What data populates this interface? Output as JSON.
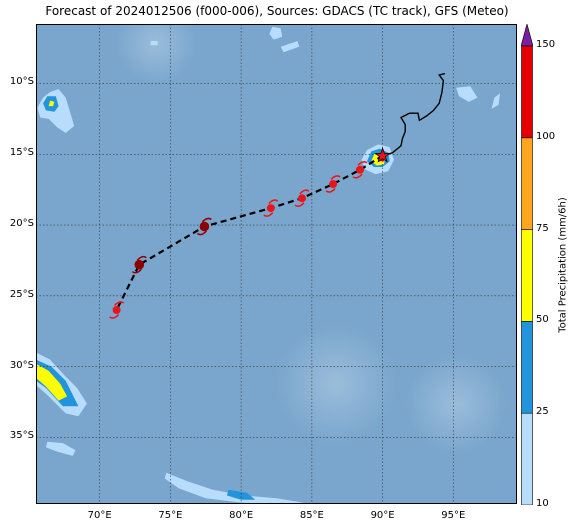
{
  "title": "Forecast of 2024012506 (f000-006), Sources: GDACS (TC track), GFS (Meteo)",
  "map": {
    "lon_range": [
      65.5,
      99.5
    ],
    "lat_range": [
      -39.7,
      -5.8
    ],
    "ocean_color": "#7aa6cd",
    "grid_lats": [
      -10,
      -15,
      -20,
      -25,
      -30,
      -35
    ],
    "grid_lons": [
      70,
      75,
      80,
      85,
      90,
      95
    ],
    "lat_labels": [
      "10°S",
      "15°S",
      "20°S",
      "25°S",
      "30°S",
      "35°S"
    ],
    "lon_labels": [
      "70°E",
      "75°E",
      "80°E",
      "85°E",
      "90°E",
      "95°E"
    ]
  },
  "colorbar": {
    "label": "Total Precipitation (mm/6h)",
    "ticks": [
      "10",
      "25",
      "50",
      "75",
      "100",
      "150"
    ],
    "bands": [
      {
        "color": "#b8dcfb"
      },
      {
        "color": "#2194db"
      },
      {
        "color": "#ffff00"
      },
      {
        "color": "#ffa51f"
      },
      {
        "color": "#e40000"
      }
    ],
    "extend_color": "#7b1fa2"
  },
  "track": {
    "current": {
      "lon": 90.0,
      "lat": -15.1
    },
    "history": [
      [
        90.0,
        -15.1
      ],
      [
        90.7,
        -14.9
      ],
      [
        91.3,
        -14.4
      ],
      [
        91.4,
        -13.9
      ],
      [
        91.6,
        -13.4
      ],
      [
        91.6,
        -12.9
      ],
      [
        91.3,
        -12.4
      ],
      [
        91.9,
        -12.1
      ],
      [
        92.5,
        -12.1
      ],
      [
        92.6,
        -12.6
      ],
      [
        93.1,
        -12.3
      ],
      [
        93.6,
        -11.9
      ],
      [
        94.0,
        -11.4
      ],
      [
        94.2,
        -10.6
      ],
      [
        94.3,
        -9.8
      ],
      [
        94.0,
        -9.4
      ],
      [
        94.4,
        -9.3
      ]
    ],
    "forecast": [
      {
        "lon": 90.0,
        "lat": -15.1,
        "strength": "storm"
      },
      {
        "lon": 88.4,
        "lat": -16.1,
        "strength": "storm"
      },
      {
        "lon": 86.5,
        "lat": -17.1,
        "strength": "storm"
      },
      {
        "lon": 84.3,
        "lat": -18.1,
        "strength": "storm"
      },
      {
        "lon": 82.1,
        "lat": -18.8,
        "strength": "storm"
      },
      {
        "lon": 77.4,
        "lat": -20.1,
        "strength": "cyclone"
      },
      {
        "lon": 72.8,
        "lat": -22.8,
        "strength": "cyclone"
      },
      {
        "lon": 71.2,
        "lat": -26.0,
        "strength": "storm"
      }
    ],
    "colors": {
      "storm": "#e8161b",
      "cyclone": "#8b0000",
      "star": "#e8161b"
    }
  },
  "precip": [
    {
      "band": 0,
      "pts": [
        [
          66.5,
          -10.6
        ],
        [
          67.1,
          -10.4
        ],
        [
          67.6,
          -11.0
        ],
        [
          67.9,
          -12.0
        ],
        [
          68.2,
          -13.0
        ],
        [
          67.6,
          -13.5
        ],
        [
          67.0,
          -13.1
        ],
        [
          66.4,
          -12.5
        ],
        [
          65.8,
          -12.4
        ],
        [
          65.6,
          -11.7
        ],
        [
          66.0,
          -11.0
        ]
      ]
    },
    {
      "band": 1,
      "pts": [
        [
          66.3,
          -10.9
        ],
        [
          66.9,
          -10.9
        ],
        [
          67.1,
          -11.6
        ],
        [
          66.8,
          -12.0
        ],
        [
          66.2,
          -11.9
        ],
        [
          66.0,
          -11.4
        ]
      ]
    },
    {
      "band": 2,
      "pts": [
        [
          66.5,
          -11.2
        ],
        [
          66.8,
          -11.3
        ],
        [
          66.7,
          -11.6
        ],
        [
          66.4,
          -11.6
        ]
      ]
    },
    {
      "band": 0,
      "pts": [
        [
          65.5,
          -29.0
        ],
        [
          66.5,
          -29.5
        ],
        [
          67.5,
          -30.6
        ],
        [
          68.4,
          -31.5
        ],
        [
          69.1,
          -32.6
        ],
        [
          68.5,
          -33.5
        ],
        [
          67.6,
          -33.3
        ],
        [
          66.3,
          -32.0
        ],
        [
          65.5,
          -31.3
        ]
      ]
    },
    {
      "band": 1,
      "pts": [
        [
          65.5,
          -29.5
        ],
        [
          66.6,
          -30.0
        ],
        [
          67.6,
          -31.0
        ],
        [
          68.1,
          -32.0
        ],
        [
          68.5,
          -32.8
        ],
        [
          67.4,
          -32.8
        ],
        [
          66.2,
          -31.5
        ],
        [
          65.5,
          -31.0
        ]
      ]
    },
    {
      "band": 2,
      "pts": [
        [
          65.5,
          -29.8
        ],
        [
          66.4,
          -30.3
        ],
        [
          67.2,
          -31.2
        ],
        [
          67.7,
          -32.1
        ],
        [
          67.1,
          -32.4
        ],
        [
          66.2,
          -31.4
        ],
        [
          65.5,
          -30.8
        ]
      ]
    },
    {
      "band": 0,
      "pts": [
        [
          66.3,
          -35.3
        ],
        [
          67.4,
          -35.4
        ],
        [
          68.3,
          -35.9
        ],
        [
          68.1,
          -36.3
        ],
        [
          67.0,
          -36.0
        ],
        [
          66.2,
          -35.7
        ]
      ]
    },
    {
      "band": 0,
      "pts": [
        [
          74.7,
          -37.5
        ],
        [
          76.2,
          -38.1
        ],
        [
          78.0,
          -38.7
        ],
        [
          80.2,
          -39.1
        ],
        [
          82.5,
          -39.3
        ],
        [
          84.4,
          -39.6
        ],
        [
          82.5,
          -39.7
        ],
        [
          80.0,
          -39.6
        ],
        [
          77.5,
          -39.3
        ],
        [
          75.6,
          -38.6
        ],
        [
          74.6,
          -37.9
        ]
      ]
    },
    {
      "band": 1,
      "pts": [
        [
          79.1,
          -38.7
        ],
        [
          80.4,
          -38.9
        ],
        [
          81.0,
          -39.4
        ],
        [
          80.0,
          -39.4
        ],
        [
          79.0,
          -39.1
        ]
      ]
    },
    {
      "band": 0,
      "pts": [
        [
          95.2,
          -10.3
        ],
        [
          96.2,
          -10.2
        ],
        [
          96.7,
          -11.0
        ],
        [
          96.1,
          -11.3
        ],
        [
          95.4,
          -10.9
        ]
      ]
    },
    {
      "band": 0,
      "pts": [
        [
          97.9,
          -11.0
        ],
        [
          98.3,
          -10.7
        ],
        [
          98.2,
          -11.5
        ],
        [
          97.7,
          -11.8
        ]
      ]
    },
    {
      "band": 0,
      "pts": [
        [
          88.9,
          -14.7
        ],
        [
          89.7,
          -14.3
        ],
        [
          90.5,
          -14.5
        ],
        [
          90.8,
          -15.4
        ],
        [
          90.4,
          -16.2
        ],
        [
          89.5,
          -16.4
        ],
        [
          88.8,
          -16.1
        ],
        [
          88.5,
          -15.4
        ]
      ]
    },
    {
      "band": 1,
      "pts": [
        [
          89.2,
          -14.8
        ],
        [
          89.8,
          -14.6
        ],
        [
          90.4,
          -14.9
        ],
        [
          90.5,
          -15.5
        ],
        [
          90.0,
          -15.9
        ],
        [
          89.4,
          -15.9
        ],
        [
          88.9,
          -15.5
        ]
      ]
    },
    {
      "band": 2,
      "pts": [
        [
          89.4,
          -15.0
        ],
        [
          89.9,
          -14.9
        ],
        [
          90.2,
          -15.2
        ],
        [
          90.1,
          -15.7
        ],
        [
          89.6,
          -15.8
        ],
        [
          89.2,
          -15.5
        ]
      ]
    },
    {
      "band": 4,
      "pts": [
        [
          89.7,
          -15.1
        ],
        [
          90.1,
          -15.2
        ],
        [
          90.1,
          -15.5
        ],
        [
          89.8,
          -15.5
        ]
      ]
    },
    {
      "band": 0,
      "pts": [
        [
          82.2,
          -6.0
        ],
        [
          82.8,
          -6.1
        ],
        [
          82.9,
          -6.7
        ],
        [
          82.3,
          -6.9
        ],
        [
          82.0,
          -6.5
        ]
      ]
    },
    {
      "band": 0,
      "pts": [
        [
          82.8,
          -7.4
        ],
        [
          84.0,
          -7.0
        ],
        [
          84.1,
          -7.4
        ],
        [
          83.0,
          -7.8
        ]
      ]
    },
    {
      "band": 0,
      "pts": [
        [
          73.6,
          -7.0
        ],
        [
          74.1,
          -7.0
        ],
        [
          74.1,
          -7.3
        ],
        [
          73.6,
          -7.3
        ]
      ]
    }
  ]
}
